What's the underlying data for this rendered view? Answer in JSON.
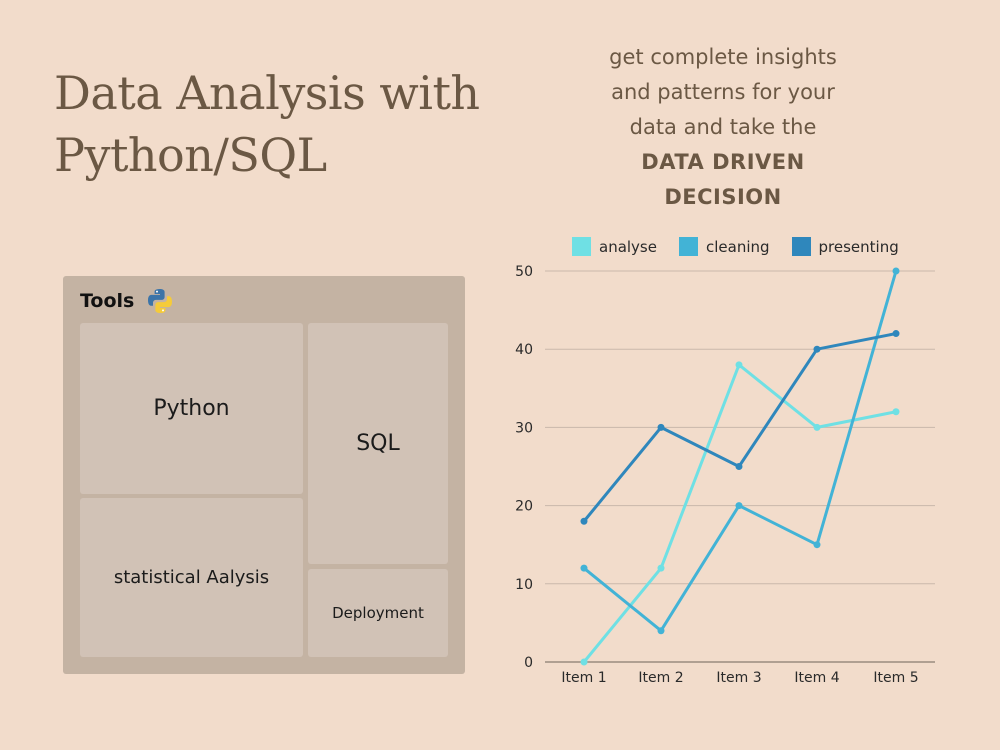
{
  "title": {
    "line1": "Data Analysis with",
    "line2": "Python/SQL"
  },
  "tagline": {
    "line1": "get complete insights",
    "line2": "and patterns for your",
    "line3": "data and take the",
    "strong1": "DATA DRIVEN",
    "strong2": "DECISION"
  },
  "tools": {
    "title": "Tools",
    "icon": "python-logo-icon",
    "tiles": {
      "python": "Python",
      "sql": "SQL",
      "stats": "statistical Aalysis",
      "deployment": "Deployment"
    }
  },
  "chart_data": {
    "type": "line",
    "categories": [
      "Item 1",
      "Item 2",
      "Item 3",
      "Item 4",
      "Item 5"
    ],
    "series": [
      {
        "name": "analyse",
        "color": "#6fe0e4",
        "values": [
          0,
          12,
          38,
          30,
          32
        ]
      },
      {
        "name": "cleaning",
        "color": "#42b3d6",
        "values": [
          12,
          4,
          20,
          15,
          50
        ]
      },
      {
        "name": "presenting",
        "color": "#2f87bc",
        "values": [
          18,
          30,
          25,
          40,
          42
        ]
      }
    ],
    "ylim": [
      0,
      50
    ],
    "yticks": [
      "0",
      "10",
      "20",
      "30",
      "40",
      "50"
    ],
    "grid": true,
    "legend": "top",
    "xlabel": "",
    "ylabel": ""
  }
}
